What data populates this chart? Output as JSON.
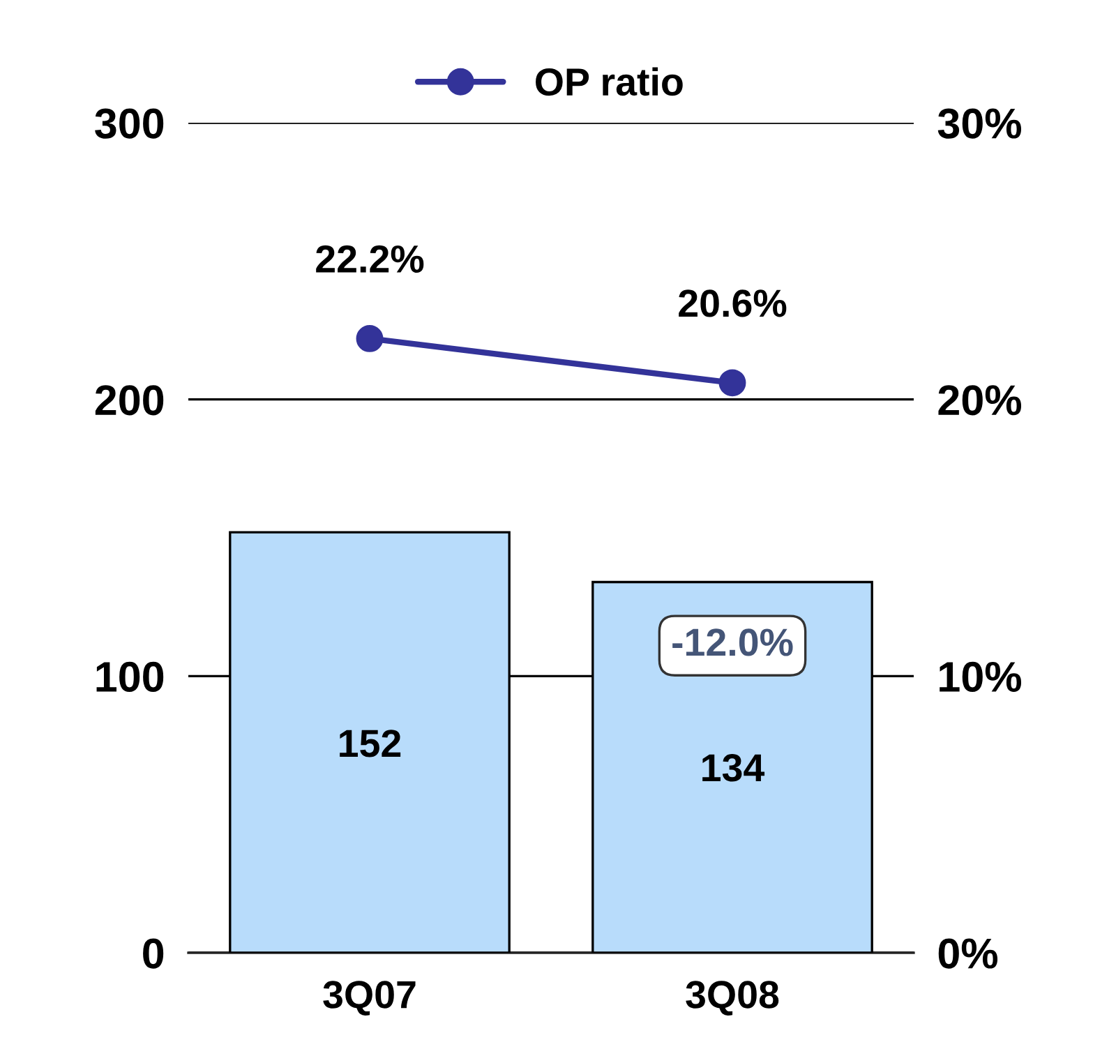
{
  "chart_data": {
    "type": "bar",
    "categories": [
      "3Q07",
      "3Q08"
    ],
    "series": [
      {
        "color": "#b8dcfb",
        "values": [
          152,
          134
        ],
        "data_labels": true
      },
      {
        "type": "line",
        "axis": "y2",
        "name": "OP ratio",
        "color": "#333399",
        "values": [
          22.2,
          20.6
        ],
        "value_labels": [
          "22.2%",
          "20.6%"
        ],
        "marker": "circle"
      }
    ],
    "ylim": [
      0,
      300
    ],
    "yticks": [
      0,
      100,
      200,
      300
    ],
    "y2lim": [
      0,
      30
    ],
    "y2ticks": [
      {
        "value": 0,
        "label": "0%"
      },
      {
        "value": 10,
        "label": "10%"
      },
      {
        "value": 20,
        "label": "20%"
      },
      {
        "value": 30,
        "label": "30%"
      }
    ],
    "grid": "y",
    "legend": "top",
    "annotations": [
      "-12.0%"
    ]
  }
}
